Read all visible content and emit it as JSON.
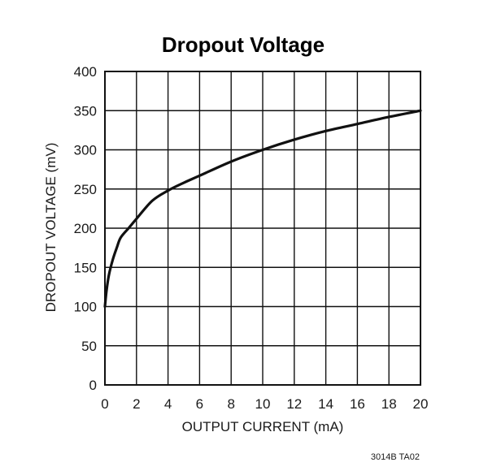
{
  "chart_data": {
    "type": "line",
    "title": "Dropout Voltage",
    "xlabel": "OUTPUT CURRENT (mA)",
    "ylabel": "DROPOUT VOLTAGE (mV)",
    "xlim": [
      0,
      20
    ],
    "ylim": [
      0,
      400
    ],
    "xticks": [
      0,
      2,
      4,
      6,
      8,
      10,
      12,
      14,
      16,
      18,
      20
    ],
    "yticks": [
      0,
      50,
      100,
      150,
      200,
      250,
      300,
      350,
      400
    ],
    "grid": true,
    "series": [
      {
        "x": [
          0,
          0.1,
          0.25,
          0.5,
          0.75,
          1.0,
          1.5,
          2.0,
          3.0,
          4.0,
          5.0,
          6.0,
          8.0,
          10.0,
          12.0,
          14.0,
          16.0,
          18.0,
          20.0
        ],
        "y": [
          100,
          120,
          140,
          160,
          175,
          188,
          200,
          212,
          235,
          248,
          258,
          267,
          285,
          300,
          313,
          324,
          333,
          342,
          350
        ]
      }
    ],
    "line_color": "#111111"
  },
  "footnote": "3014B TA02"
}
